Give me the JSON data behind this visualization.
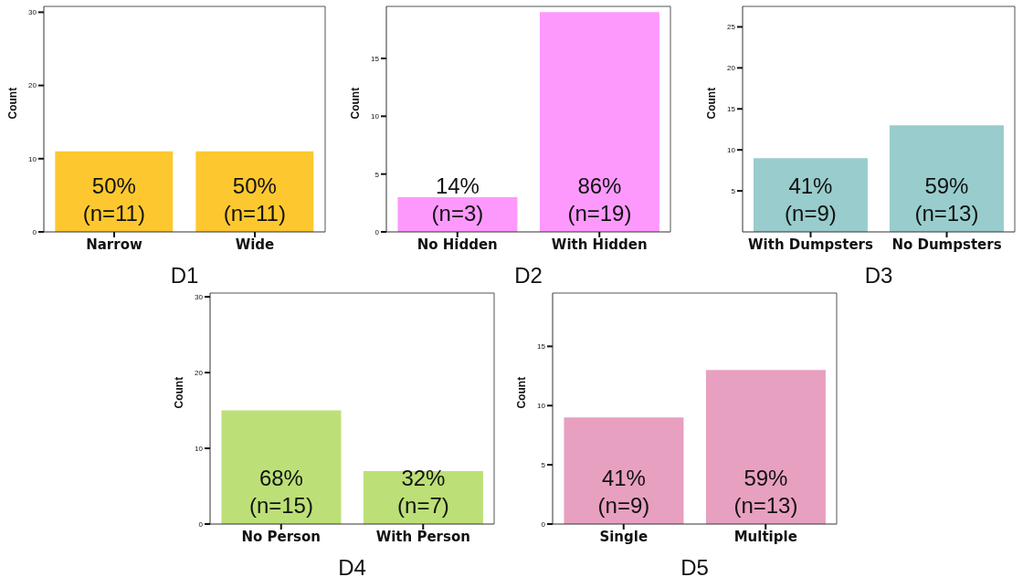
{
  "chart_data": [
    {
      "type": "bar",
      "xlabel": "D1",
      "ylabel": "Count",
      "categories": [
        "Narrow",
        "Wide"
      ],
      "values": [
        11,
        11
      ],
      "color": "#fdc82f",
      "ylim": [
        0,
        30.8
      ],
      "yticks": [
        0,
        10,
        20,
        30
      ],
      "value_labels": [
        "50%\n(n=11)",
        "50%\n(n=11)"
      ]
    },
    {
      "type": "bar",
      "xlabel": "D2",
      "ylabel": "Count",
      "categories": [
        "No Hidden",
        "With Hidden"
      ],
      "values": [
        3,
        19
      ],
      "color": "#fd99fd",
      "ylim": [
        0,
        19.5
      ],
      "yticks": [
        0,
        5,
        10,
        15
      ],
      "value_labels": [
        "14%\n(n=3)",
        "86%\n(n=19)"
      ]
    },
    {
      "type": "bar",
      "xlabel": "D3",
      "ylabel": "Count",
      "categories": [
        "With Dumpsters",
        "No Dumpsters"
      ],
      "values": [
        9,
        13
      ],
      "color": "#99cccc",
      "ylim": [
        0,
        27.5
      ],
      "yticks": [
        5,
        10,
        15,
        20,
        25
      ],
      "value_labels": [
        "41%\n(n=9)",
        "59%\n(n=13)"
      ]
    },
    {
      "type": "bar",
      "xlabel": "D4",
      "ylabel": "Count",
      "categories": [
        "No Person",
        "With Person"
      ],
      "values": [
        15,
        7
      ],
      "color": "#bce077",
      "ylim": [
        0,
        30.5
      ],
      "yticks": [
        0,
        10,
        20,
        30
      ],
      "value_labels": [
        "68%\n(n=15)",
        "32%\n(n=7)"
      ]
    },
    {
      "type": "bar",
      "xlabel": "D5",
      "ylabel": "Count",
      "categories": [
        "Single",
        "Multiple"
      ],
      "values": [
        9,
        13
      ],
      "color": "#e8a0c0",
      "ylim": [
        0,
        19.5
      ],
      "yticks": [
        0,
        5,
        10,
        15
      ],
      "value_labels": [
        "41%\n(n=9)",
        "59%\n(n=13)"
      ]
    }
  ]
}
